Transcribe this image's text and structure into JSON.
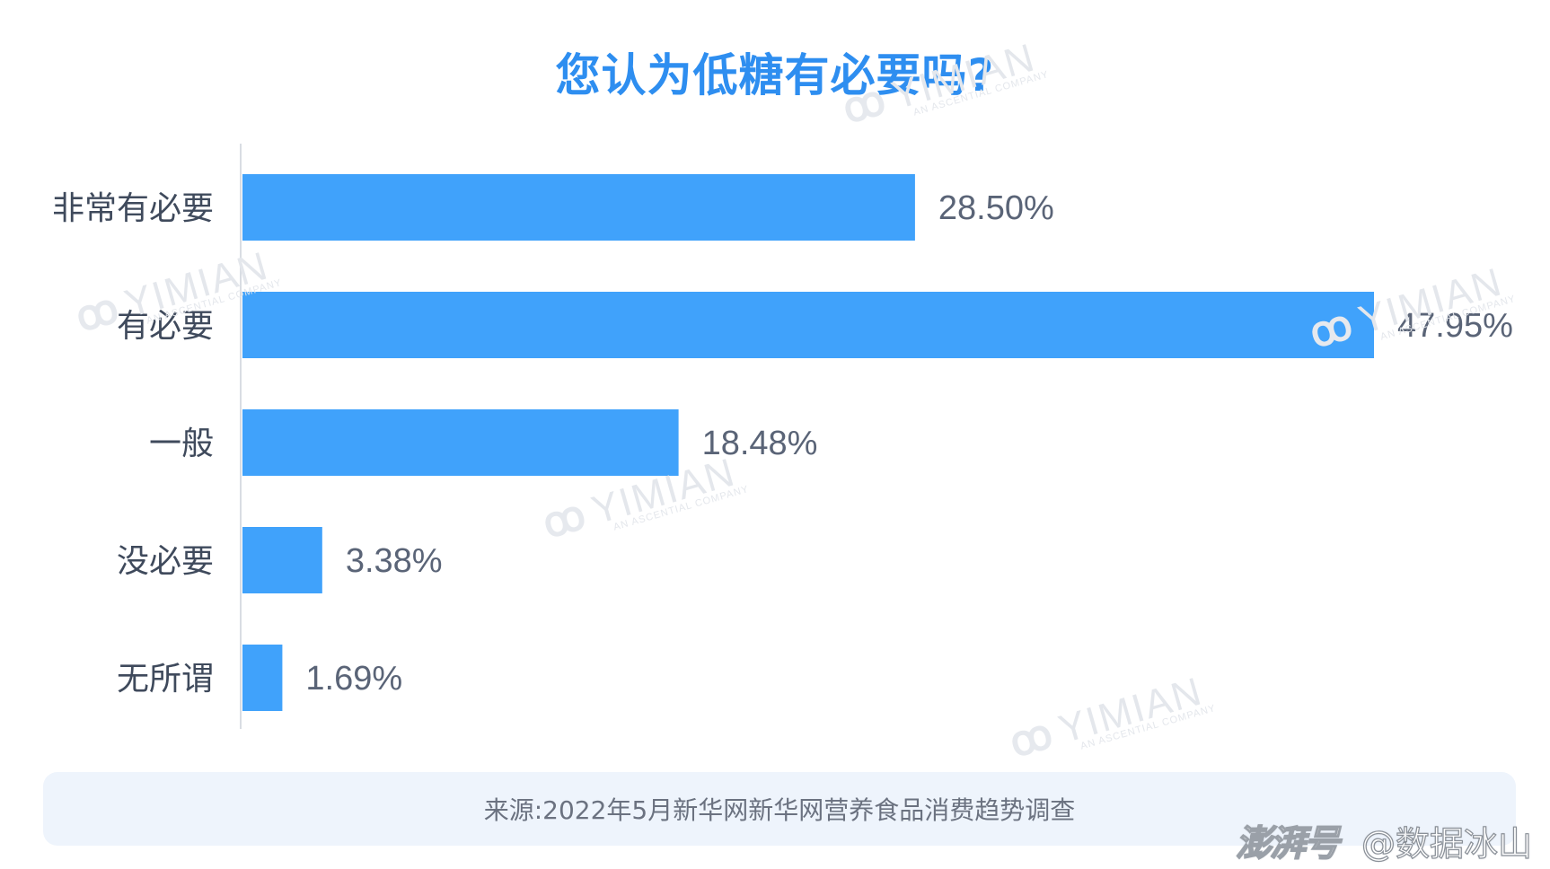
{
  "chart_data": {
    "type": "bar",
    "orientation": "horizontal",
    "title": "您认为低糖有必要吗?",
    "categories": [
      "非常有必要",
      "有必要",
      "一般",
      "没必要",
      "无所谓"
    ],
    "values": [
      28.5,
      47.95,
      18.48,
      3.38,
      1.69
    ],
    "value_labels": [
      "28.50%",
      "47.95%",
      "18.48%",
      "3.38%",
      "1.69%"
    ],
    "unit": "%",
    "xlim": [
      0,
      47.95
    ],
    "grid": false,
    "legend": "none",
    "bar_color": "#40a2fb",
    "title_color": "#2e8ef0"
  },
  "source": "来源:2022年5月新华网新华网营养食品消费趋势调查",
  "watermark": {
    "logo": "&",
    "name": "YIMIAN",
    "sub": "AN ASCENTIAL COMPANY"
  },
  "footer": {
    "brand": "澎湃号",
    "handle": "@数据冰山"
  }
}
